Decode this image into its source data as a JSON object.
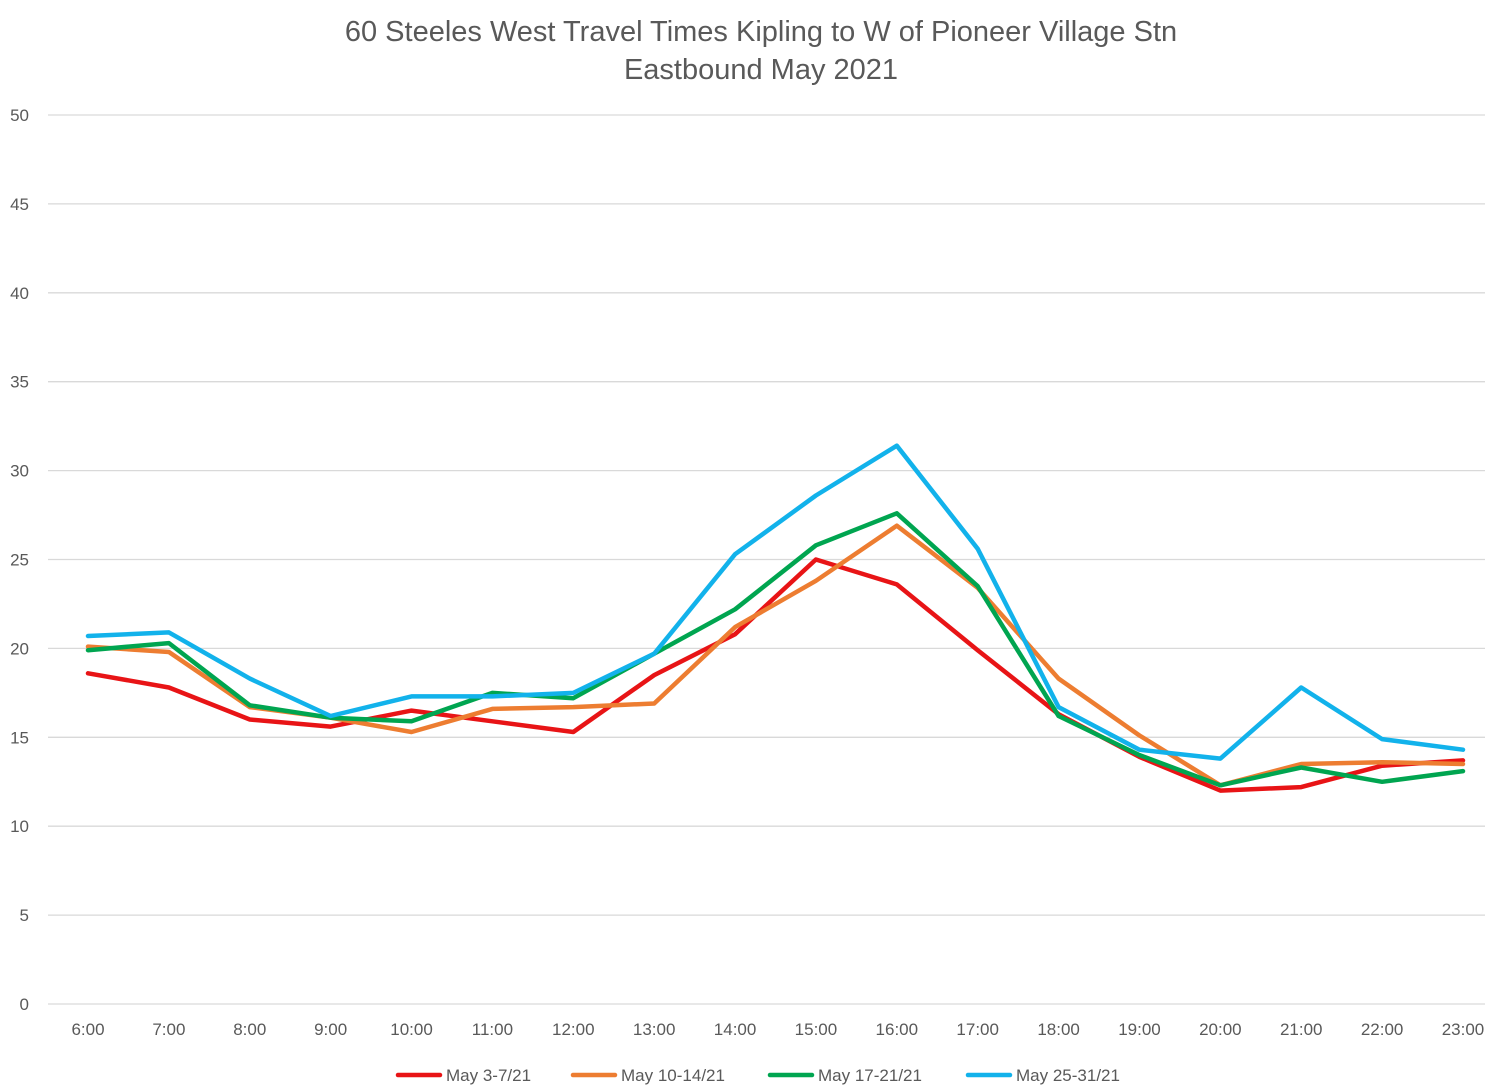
{
  "chart_data": {
    "type": "line",
    "title": "60 Steeles West Travel Times Kipling to W of Pioneer Village Stn",
    "subtitle": "Eastbound  May 2021",
    "xlabel": "",
    "ylabel": "",
    "ylim": [
      0,
      50
    ],
    "yticks": [
      0,
      5,
      10,
      15,
      20,
      25,
      30,
      35,
      40,
      45,
      50
    ],
    "grid": true,
    "legend_position": "bottom",
    "categories": [
      "6:00",
      "7:00",
      "8:00",
      "9:00",
      "10:00",
      "11:00",
      "12:00",
      "13:00",
      "14:00",
      "15:00",
      "16:00",
      "17:00",
      "18:00",
      "19:00",
      "20:00",
      "21:00",
      "22:00",
      "23:00"
    ],
    "series": [
      {
        "name": "May 3-7/21",
        "color": "#e81416",
        "values": [
          18.6,
          17.8,
          16.0,
          15.6,
          16.5,
          15.9,
          15.3,
          18.5,
          20.8,
          25.0,
          23.6,
          19.9,
          16.3,
          13.9,
          12.0,
          12.2,
          13.4,
          13.7
        ]
      },
      {
        "name": "May 10-14/21",
        "color": "#ed7d31",
        "values": [
          20.1,
          19.8,
          16.7,
          16.1,
          15.3,
          16.6,
          16.7,
          16.9,
          21.2,
          23.8,
          26.9,
          23.4,
          18.3,
          15.1,
          12.3,
          13.5,
          13.6,
          13.5
        ]
      },
      {
        "name": "May 17-21/21",
        "color": "#00a550",
        "values": [
          19.9,
          20.3,
          16.8,
          16.1,
          15.9,
          17.5,
          17.2,
          19.7,
          22.2,
          25.8,
          27.6,
          23.5,
          16.2,
          14.0,
          12.3,
          13.3,
          12.5,
          13.1
        ]
      },
      {
        "name": "May 25-31/21",
        "color": "#12b2eb",
        "values": [
          20.7,
          20.9,
          18.3,
          16.2,
          17.3,
          17.3,
          17.5,
          19.7,
          25.3,
          28.6,
          31.4,
          25.6,
          16.7,
          14.3,
          13.8,
          17.8,
          14.9,
          14.3
        ]
      }
    ]
  }
}
